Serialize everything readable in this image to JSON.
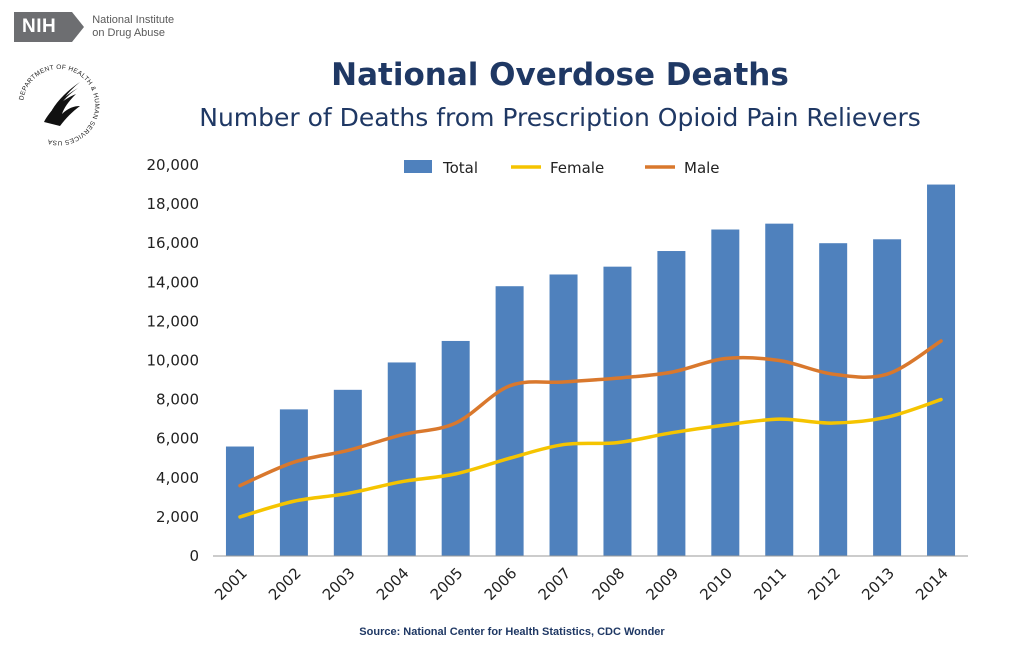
{
  "header": {
    "nih_badge": "NIH",
    "nih_line1": "National Institute",
    "nih_line2": "on Drug Abuse",
    "seal_text": "DEPARTMENT OF HEALTH & HUMAN SERVICES USA"
  },
  "colors": {
    "total": "#4f81bd",
    "female": "#f5c400",
    "male": "#d9782d",
    "title": "#1f3864"
  },
  "source": "Source: National Center for Health Statistics, CDC Wonder",
  "chart_data": {
    "type": "bar",
    "title": "National Overdose Deaths",
    "subtitle": "Number of Deaths from Prescription Opioid Pain Relievers",
    "categories": [
      "2001",
      "2002",
      "2003",
      "2004",
      "2005",
      "2006",
      "2007",
      "2008",
      "2009",
      "2010",
      "2011",
      "2012",
      "2013",
      "2014"
    ],
    "series": [
      {
        "name": "Total",
        "type": "bar",
        "values": [
          5600,
          7500,
          8500,
          9900,
          11000,
          13800,
          14400,
          14800,
          15600,
          16700,
          17000,
          16000,
          16200,
          19000
        ]
      },
      {
        "name": "Female",
        "type": "line",
        "values": [
          2000,
          2800,
          3200,
          3800,
          4200,
          5000,
          5700,
          5800,
          6300,
          6700,
          7000,
          6800,
          7100,
          8000
        ]
      },
      {
        "name": "Male",
        "type": "line",
        "values": [
          3600,
          4800,
          5400,
          6200,
          6800,
          8700,
          8900,
          9100,
          9400,
          10100,
          10000,
          9300,
          9300,
          11000
        ]
      }
    ],
    "y_ticks": [
      "0",
      "2,000",
      "4,000",
      "6,000",
      "8,000",
      "10,000",
      "12,000",
      "14,000",
      "16,000",
      "18,000",
      "20,000"
    ],
    "ylim": [
      0,
      20000
    ],
    "xlabel": "",
    "ylabel": "",
    "legend_position": "top-center"
  }
}
